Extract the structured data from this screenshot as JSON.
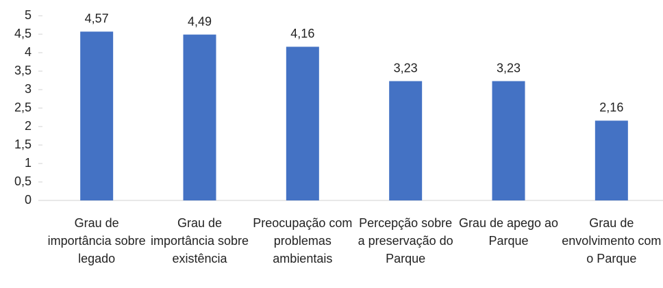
{
  "chart_data": {
    "type": "bar",
    "categories": [
      "Grau de importância sobre legado",
      "Grau de importância sobre existência",
      "Preocupação com problemas ambientais",
      "Percepção sobre a preservação do Parque",
      "Grau de apego ao Parque",
      "Grau de envolvimento com o Parque"
    ],
    "values": [
      4.57,
      4.49,
      4.16,
      3.23,
      3.23,
      2.16
    ],
    "value_labels": [
      "4,57",
      "4,49",
      "4,16",
      "3,23",
      "3,23",
      "2,16"
    ],
    "color": "#4472c4",
    "ylim": [
      0,
      5
    ],
    "yticks": [
      0,
      {
        "value": 0.5,
        "label": "0,5"
      },
      1,
      {
        "value": 1.5,
        "label": "1,5"
      },
      2,
      {
        "value": 2.5,
        "label": "2,5"
      },
      3,
      {
        "value": 3.5,
        "label": "3,5"
      },
      4,
      {
        "value": 4.5,
        "label": "4,5"
      },
      5
    ],
    "grid": false
  }
}
